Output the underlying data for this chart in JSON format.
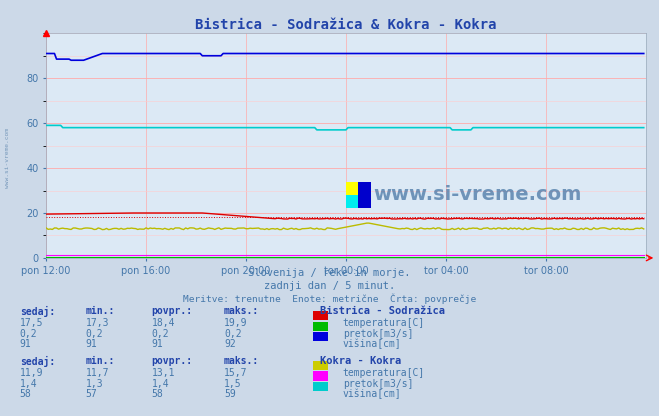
{
  "title": "Bistrica - Sodražica & Kokra - Kokra",
  "bg_color": "#ccd9e8",
  "plot_bg_color": "#dce9f5",
  "grid_color_major": "#ffaaaa",
  "grid_color_minor": "#ffcccc",
  "xlabel_ticks": [
    "pon 12:00",
    "pon 16:00",
    "pon 20:00",
    "tor 00:00",
    "tor 04:00",
    "tor 08:00"
  ],
  "xlim": [
    0,
    288
  ],
  "ylim": [
    0,
    100
  ],
  "yticks": [
    0,
    20,
    40,
    60,
    80
  ],
  "subtitle1": "Slovenija / reke in morje.",
  "subtitle2": "zadnji dan / 5 minut.",
  "subtitle3": "Meritve: trenutne  Enote: metrične  Črta: povprečje",
  "text_color": "#4477aa",
  "title_color": "#2244aa",
  "lines": {
    "bistrica_visina": {
      "value": 91,
      "color": "#0000dd",
      "linewidth": 1.2
    },
    "kokra_visina": {
      "value": 58,
      "color": "#00cccc",
      "linewidth": 1.2
    },
    "bistrica_temp": {
      "value": 18.4,
      "color": "#dd0000",
      "linewidth": 1.0
    },
    "bistrica_temp_avg": {
      "value": 18.4,
      "color": "#dd0000",
      "linewidth": 0.7
    },
    "kokra_temp": {
      "value": 13.1,
      "color": "#bbbb00",
      "linewidth": 1.0
    },
    "bistrica_pretok": {
      "value": 0.2,
      "color": "#00bb00",
      "linewidth": 0.8
    },
    "kokra_pretok": {
      "value": 1.4,
      "color": "#ff00ff",
      "linewidth": 0.8
    }
  },
  "table1_header": [
    "sedaj:",
    "min.:",
    "povpr.:",
    "maks.:"
  ],
  "table1_title": "Bistrica - Sodražica",
  "table1_data": [
    [
      "17,5",
      "17,3",
      "18,4",
      "19,9"
    ],
    [
      "0,2",
      "0,2",
      "0,2",
      "0,2"
    ],
    [
      "91",
      "91",
      "91",
      "92"
    ]
  ],
  "table1_labels": [
    "temperatura[C]",
    "pretok[m3/s]",
    "višina[cm]"
  ],
  "table1_colors": [
    "#dd0000",
    "#00bb00",
    "#0000dd"
  ],
  "table2_title": "Kokra - Kokra",
  "table2_data": [
    [
      "11,9",
      "11,7",
      "13,1",
      "15,7"
    ],
    [
      "1,4",
      "1,3",
      "1,4",
      "1,5"
    ],
    [
      "58",
      "57",
      "58",
      "59"
    ]
  ],
  "table2_labels": [
    "temperatura[C]",
    "pretok[m3/s]",
    "višina[cm]"
  ],
  "table2_colors": [
    "#cccc00",
    "#ff00ff",
    "#00cccc"
  ],
  "swatch_colors_1": [
    "#dd0000",
    "#00bb00",
    "#0000dd"
  ],
  "swatch_colors_2": [
    "#cccc00",
    "#ff00ff",
    "#00cccc"
  ]
}
